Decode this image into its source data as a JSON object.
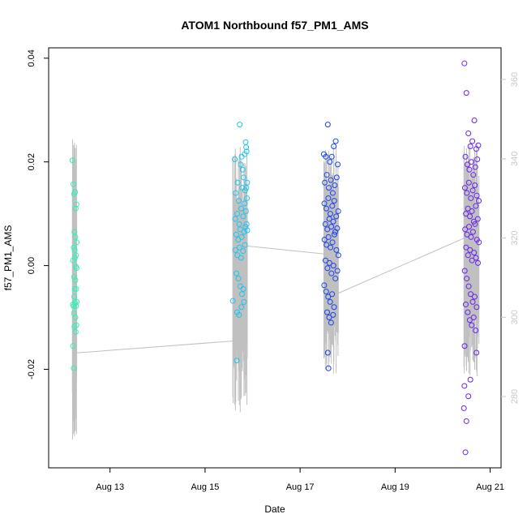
{
  "chart_data": {
    "type": "scatter",
    "title": "ATOM1 Northbound f57_PM1_AMS",
    "xlabel": "Date",
    "ylabel": "f57_PM1_AMS",
    "xlim": [
      "2023-08-11T17:00",
      "2023-08-21T05:30"
    ],
    "ylim": [
      -0.039,
      0.042
    ],
    "y2lim": [
      262,
      368
    ],
    "x_ticks": [
      {
        "date": "2023-08-13T00:00",
        "label": "Aug 13"
      },
      {
        "date": "2023-08-15T00:00",
        "label": "Aug 15"
      },
      {
        "date": "2023-08-17T00:00",
        "label": "Aug 17"
      },
      {
        "date": "2023-08-19T00:00",
        "label": "Aug 19"
      },
      {
        "date": "2023-08-21T00:00",
        "label": "Aug 21"
      }
    ],
    "y_ticks": [
      {
        "value": -0.02,
        "label": "-0.02"
      },
      {
        "value": 0.0,
        "label": "0.00"
      },
      {
        "value": 0.02,
        "label": "0.02"
      },
      {
        "value": 0.04,
        "label": "0.04"
      }
    ],
    "y2_ticks": [
      {
        "value": 280,
        "label": "280"
      },
      {
        "value": 300,
        "label": "300"
      },
      {
        "value": 320,
        "label": "320"
      },
      {
        "value": 340,
        "label": "340"
      },
      {
        "value": 360,
        "label": "360"
      }
    ],
    "grid": false,
    "series": [
      {
        "color": "#2ff2b8",
        "points": [
          [
            "2023-08-12T05:00",
            0.0203
          ],
          [
            "2023-08-12T05:30",
            0.0157
          ],
          [
            "2023-08-12T05:50",
            0.0138
          ],
          [
            "2023-08-12T06:20",
            0.0142
          ],
          [
            "2023-08-12T06:40",
            0.011
          ],
          [
            "2023-08-12T07:00",
            0.0118
          ],
          [
            "2023-08-12T06:00",
            0.0065
          ],
          [
            "2023-08-12T06:30",
            0.0055
          ],
          [
            "2023-08-12T07:10",
            0.0045
          ],
          [
            "2023-08-12T05:40",
            0.0035
          ],
          [
            "2023-08-12T06:10",
            0.003
          ],
          [
            "2023-08-12T06:50",
            0.002
          ],
          [
            "2023-08-12T05:20",
            0.001
          ],
          [
            "2023-08-12T06:45",
            -0.0002
          ],
          [
            "2023-08-12T07:05",
            -0.0005
          ],
          [
            "2023-08-12T05:50",
            -0.0022
          ],
          [
            "2023-08-12T06:30",
            -0.0028
          ],
          [
            "2023-08-12T06:55",
            -0.0045
          ],
          [
            "2023-08-12T06:10",
            -0.0045
          ],
          [
            "2023-08-12T05:15",
            -0.0075
          ],
          [
            "2023-08-12T05:35",
            -0.0078
          ],
          [
            "2023-08-12T06:20",
            -0.0072
          ],
          [
            "2023-08-12T06:50",
            -0.0078
          ],
          [
            "2023-08-12T07:10",
            -0.007
          ],
          [
            "2023-08-12T05:45",
            -0.0092
          ],
          [
            "2023-08-12T06:30",
            -0.01
          ],
          [
            "2023-08-12T06:00",
            -0.0118
          ],
          [
            "2023-08-12T07:00",
            -0.0115
          ],
          [
            "2023-08-12T06:40",
            -0.0128
          ],
          [
            "2023-08-12T05:20",
            -0.0155
          ],
          [
            "2023-08-12T05:40",
            -0.0198
          ],
          [
            "2023-08-12T06:15",
            0.0015
          ],
          [
            "2023-08-12T05:55",
            -0.006
          ]
        ]
      },
      {
        "color": "#1ec4f0",
        "points": [
          [
            "2023-08-15T14:00",
            -0.0068
          ],
          [
            "2023-08-15T15:00",
            0.0205
          ],
          [
            "2023-08-15T16:00",
            -0.0183
          ],
          [
            "2023-08-15T17:30",
            0.0272
          ],
          [
            "2023-08-15T18:00",
            0.0195
          ],
          [
            "2023-08-15T18:30",
            0.021
          ],
          [
            "2023-08-15T19:00",
            0.0185
          ],
          [
            "2023-08-15T20:00",
            0.0215
          ],
          [
            "2023-08-15T20:30",
            0.0238
          ],
          [
            "2023-08-15T21:00",
            0.022
          ],
          [
            "2023-08-15T20:45",
            0.0228
          ],
          [
            "2023-08-15T15:30",
            0.014
          ],
          [
            "2023-08-15T16:30",
            0.016
          ],
          [
            "2023-08-15T17:00",
            0.0125
          ],
          [
            "2023-08-15T18:45",
            0.015
          ],
          [
            "2023-08-15T19:30",
            0.017
          ],
          [
            "2023-08-15T20:15",
            0.0145
          ],
          [
            "2023-08-15T21:15",
            0.016
          ],
          [
            "2023-08-15T15:15",
            0.009
          ],
          [
            "2023-08-15T16:15",
            0.01
          ],
          [
            "2023-08-15T17:15",
            0.008
          ],
          [
            "2023-08-15T18:15",
            0.011
          ],
          [
            "2023-08-15T19:15",
            0.0095
          ],
          [
            "2023-08-15T20:00",
            0.012
          ],
          [
            "2023-08-15T20:40",
            0.0105
          ],
          [
            "2023-08-15T21:10",
            0.013
          ],
          [
            "2023-08-15T15:45",
            0.006
          ],
          [
            "2023-08-15T16:45",
            0.005
          ],
          [
            "2023-08-15T17:45",
            0.007
          ],
          [
            "2023-08-15T18:30",
            0.0055
          ],
          [
            "2023-08-15T19:45",
            0.0065
          ],
          [
            "2023-08-15T20:30",
            0.0075
          ],
          [
            "2023-08-15T21:20",
            0.0068
          ],
          [
            "2023-08-15T15:20",
            0.003
          ],
          [
            "2023-08-15T16:20",
            0.002
          ],
          [
            "2023-08-15T17:20",
            0.0035
          ],
          [
            "2023-08-15T18:10",
            0.0015
          ],
          [
            "2023-08-15T19:10",
            0.0028
          ],
          [
            "2023-08-15T20:10",
            0.004
          ],
          [
            "2023-08-15T15:50",
            -0.0015
          ],
          [
            "2023-08-15T16:50",
            -0.0025
          ],
          [
            "2023-08-15T17:50",
            -0.004
          ],
          [
            "2023-08-15T18:40",
            -0.0055
          ],
          [
            "2023-08-15T19:40",
            -0.007
          ],
          [
            "2023-08-15T16:10",
            -0.009
          ],
          [
            "2023-08-15T17:10",
            -0.0095
          ],
          [
            "2023-08-15T18:20",
            -0.008
          ],
          [
            "2023-08-15T19:20",
            -0.0045
          ],
          [
            "2023-08-15T20:50",
            0.015
          ],
          [
            "2023-08-15T21:00",
            0.008
          ]
        ]
      },
      {
        "color": "#1a42ea",
        "points": [
          [
            "2023-08-17T12:00",
            0.0215
          ],
          [
            "2023-08-17T13:00",
            0.021
          ],
          [
            "2023-08-17T14:00",
            0.0272
          ],
          [
            "2023-08-17T15:00",
            0.02
          ],
          [
            "2023-08-17T17:00",
            0.023
          ],
          [
            "2023-08-17T18:00",
            0.024
          ],
          [
            "2023-08-17T16:00",
            0.021
          ],
          [
            "2023-08-17T19:00",
            0.0195
          ],
          [
            "2023-08-17T12:30",
            0.016
          ],
          [
            "2023-08-17T13:30",
            0.0175
          ],
          [
            "2023-08-17T14:30",
            0.015
          ],
          [
            "2023-08-17T15:30",
            0.0165
          ],
          [
            "2023-08-17T16:30",
            0.014
          ],
          [
            "2023-08-17T17:30",
            0.0155
          ],
          [
            "2023-08-17T18:30",
            0.017
          ],
          [
            "2023-08-17T12:15",
            0.012
          ],
          [
            "2023-08-17T13:15",
            0.011
          ],
          [
            "2023-08-17T14:15",
            0.013
          ],
          [
            "2023-08-17T15:15",
            0.01
          ],
          [
            "2023-08-17T16:15",
            0.0115
          ],
          [
            "2023-08-17T17:15",
            0.0125
          ],
          [
            "2023-08-17T18:15",
            0.0095
          ],
          [
            "2023-08-17T19:15",
            0.0105
          ],
          [
            "2023-08-17T12:45",
            0.008
          ],
          [
            "2023-08-17T13:45",
            0.007
          ],
          [
            "2023-08-17T14:45",
            0.009
          ],
          [
            "2023-08-17T15:45",
            0.0075
          ],
          [
            "2023-08-17T16:45",
            0.0085
          ],
          [
            "2023-08-17T17:45",
            0.0065
          ],
          [
            "2023-08-17T18:45",
            0.0072
          ],
          [
            "2023-08-17T12:20",
            0.005
          ],
          [
            "2023-08-17T13:20",
            0.004
          ],
          [
            "2023-08-17T14:20",
            0.0055
          ],
          [
            "2023-08-17T15:20",
            0.0035
          ],
          [
            "2023-08-17T16:20",
            0.0045
          ],
          [
            "2023-08-17T17:20",
            0.006
          ],
          [
            "2023-08-17T18:20",
            0.003
          ],
          [
            "2023-08-17T19:20",
            0.002
          ],
          [
            "2023-08-17T12:50",
            0.001
          ],
          [
            "2023-08-17T13:50",
            -0.0005
          ],
          [
            "2023-08-17T14:50",
            0.0005
          ],
          [
            "2023-08-17T15:50",
            -0.0015
          ],
          [
            "2023-08-17T16:50",
            0.0
          ],
          [
            "2023-08-17T17:50",
            -0.0025
          ],
          [
            "2023-08-17T18:50",
            -0.001
          ],
          [
            "2023-08-17T12:10",
            -0.0038
          ],
          [
            "2023-08-17T13:10",
            -0.005
          ],
          [
            "2023-08-17T14:10",
            -0.006
          ],
          [
            "2023-08-17T15:10",
            -0.007
          ],
          [
            "2023-08-17T16:10",
            -0.0055
          ],
          [
            "2023-08-17T17:10",
            -0.008
          ],
          [
            "2023-08-17T14:40",
            -0.01
          ],
          [
            "2023-08-17T15:40",
            -0.011
          ],
          [
            "2023-08-17T13:40",
            -0.009
          ],
          [
            "2023-08-17T16:40",
            -0.0095
          ],
          [
            "2023-08-17T14:00",
            -0.0168
          ],
          [
            "2023-08-17T14:20",
            -0.0198
          ]
        ]
      },
      {
        "color": "#6a22ee",
        "points": [
          [
            "2023-08-20T11:00",
            0.039
          ],
          [
            "2023-08-20T12:00",
            0.0333
          ],
          [
            "2023-08-20T13:00",
            0.0255
          ],
          [
            "2023-08-20T14:00",
            0.023
          ],
          [
            "2023-08-20T15:00",
            0.024
          ],
          [
            "2023-08-20T16:00",
            0.028
          ],
          [
            "2023-08-20T17:00",
            0.0225
          ],
          [
            "2023-08-20T18:00",
            0.0232
          ],
          [
            "2023-08-20T11:30",
            0.021
          ],
          [
            "2023-08-20T12:30",
            0.0195
          ],
          [
            "2023-08-20T13:30",
            0.0185
          ],
          [
            "2023-08-20T14:30",
            0.02
          ],
          [
            "2023-08-20T15:30",
            0.0175
          ],
          [
            "2023-08-20T16:30",
            0.019
          ],
          [
            "2023-08-20T17:30",
            0.0205
          ],
          [
            "2023-08-20T11:15",
            0.015
          ],
          [
            "2023-08-20T12:15",
            0.014
          ],
          [
            "2023-08-20T13:15",
            0.016
          ],
          [
            "2023-08-20T14:15",
            0.013
          ],
          [
            "2023-08-20T15:15",
            0.0145
          ],
          [
            "2023-08-20T16:15",
            0.0155
          ],
          [
            "2023-08-20T17:15",
            0.0135
          ],
          [
            "2023-08-20T18:15",
            0.0125
          ],
          [
            "2023-08-20T11:45",
            0.01
          ],
          [
            "2023-08-20T12:45",
            0.011
          ],
          [
            "2023-08-20T13:45",
            0.0095
          ],
          [
            "2023-08-20T14:45",
            0.0105
          ],
          [
            "2023-08-20T15:45",
            0.0085
          ],
          [
            "2023-08-20T16:45",
            0.0115
          ],
          [
            "2023-08-20T17:45",
            0.009
          ],
          [
            "2023-08-20T11:20",
            0.007
          ],
          [
            "2023-08-20T12:20",
            0.006
          ],
          [
            "2023-08-20T13:20",
            0.0075
          ],
          [
            "2023-08-20T14:20",
            0.0055
          ],
          [
            "2023-08-20T15:20",
            0.0065
          ],
          [
            "2023-08-20T16:20",
            0.008
          ],
          [
            "2023-08-20T17:20",
            0.005
          ],
          [
            "2023-08-20T18:20",
            0.0045
          ],
          [
            "2023-08-20T11:50",
            0.0035
          ],
          [
            "2023-08-20T12:50",
            0.002
          ],
          [
            "2023-08-20T13:50",
            0.003
          ],
          [
            "2023-08-20T14:50",
            0.001
          ],
          [
            "2023-08-20T15:50",
            0.0025
          ],
          [
            "2023-08-20T16:50",
            0.0015
          ],
          [
            "2023-08-20T17:50",
            0.0005
          ],
          [
            "2023-08-20T11:10",
            -0.001
          ],
          [
            "2023-08-20T12:10",
            -0.0025
          ],
          [
            "2023-08-20T13:10",
            -0.004
          ],
          [
            "2023-08-20T14:10",
            -0.0055
          ],
          [
            "2023-08-20T15:10",
            -0.007
          ],
          [
            "2023-08-20T16:10",
            -0.006
          ],
          [
            "2023-08-20T17:10",
            -0.008
          ],
          [
            "2023-08-20T11:40",
            -0.0075
          ],
          [
            "2023-08-20T12:40",
            -0.009
          ],
          [
            "2023-08-20T13:40",
            -0.0105
          ],
          [
            "2023-08-20T14:40",
            -0.0115
          ],
          [
            "2023-08-20T15:40",
            -0.01
          ],
          [
            "2023-08-20T16:40",
            -0.0125
          ],
          [
            "2023-08-20T11:05",
            -0.0155
          ],
          [
            "2023-08-20T17:05",
            -0.0168
          ],
          [
            "2023-08-20T14:00",
            -0.022
          ],
          [
            "2023-08-20T11:00",
            -0.0232
          ],
          [
            "2023-08-20T10:45",
            -0.0275
          ],
          [
            "2023-08-20T12:00",
            -0.03
          ],
          [
            "2023-08-20T11:30",
            -0.036
          ],
          [
            "2023-08-20T13:00",
            -0.0252
          ]
        ]
      }
    ],
    "line_series": {
      "color": "#c0c0c0",
      "axis": "right",
      "segments": [
        {
          "from": [
            "2023-08-12T07:00",
            291
          ],
          "to": [
            "2023-08-15T14:00",
            294
          ],
          "band": [
            269,
            345
          ]
        },
        {
          "from": [
            "2023-08-15T21:00",
            318
          ],
          "to": [
            "2023-08-17T12:00",
            316
          ],
          "band": [
            275,
            344
          ]
        },
        {
          "from": [
            "2023-08-17T19:00",
            306
          ],
          "to": [
            "2023-08-20T11:00",
            320
          ],
          "band": [
            285,
            344
          ]
        }
      ]
    }
  }
}
